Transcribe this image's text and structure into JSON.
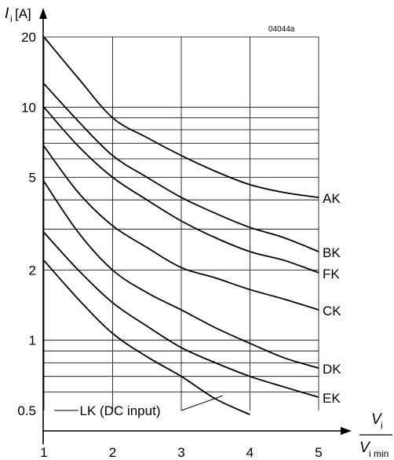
{
  "chart_data": {
    "type": "line",
    "figure_code": "04044a",
    "y_axis": {
      "label_main": "I",
      "label_sub": "i",
      "label_unit": "[A]",
      "scale": "log",
      "range": [
        0.5,
        20
      ],
      "tick_labels": [
        {
          "value": 20,
          "label": "20"
        },
        {
          "value": 10,
          "label": "10"
        },
        {
          "value": 5,
          "label": "5"
        },
        {
          "value": 2,
          "label": "2"
        },
        {
          "value": 1,
          "label": "1"
        },
        {
          "value": 0.5,
          "label": "0.5"
        }
      ],
      "gridlines": [
        0.6,
        0.7,
        0.8,
        0.9,
        1,
        2,
        3,
        4,
        5,
        6,
        7,
        8,
        9,
        10,
        20
      ]
    },
    "x_axis": {
      "label_numerator_main": "V",
      "label_numerator_sub": "i",
      "label_denominator_main": "V",
      "label_denominator_sub": "i min",
      "scale": "linear",
      "range": [
        1,
        5
      ],
      "tick_labels": [
        {
          "value": 1,
          "label": "1"
        },
        {
          "value": 2,
          "label": "2"
        },
        {
          "value": 3,
          "label": "3"
        },
        {
          "value": 4,
          "label": "4"
        },
        {
          "value": 5,
          "label": "5"
        }
      ],
      "gridlines": [
        1,
        2,
        3,
        4,
        5
      ]
    },
    "grid": true,
    "series": [
      {
        "name": "AK",
        "points": [
          [
            1,
            20
          ],
          [
            1.5,
            13.3
          ],
          [
            2,
            9.0
          ],
          [
            2.5,
            7.4
          ],
          [
            3,
            6.2
          ],
          [
            3.5,
            5.3
          ],
          [
            4,
            4.65
          ],
          [
            4.5,
            4.3
          ],
          [
            5,
            4.1
          ]
        ]
      },
      {
        "name": "BK",
        "points": [
          [
            1,
            12.6
          ],
          [
            1.5,
            8.7
          ],
          [
            2,
            6.2
          ],
          [
            2.5,
            5.0
          ],
          [
            3,
            4.1
          ],
          [
            3.5,
            3.5
          ],
          [
            4,
            3.05
          ],
          [
            4.5,
            2.75
          ],
          [
            5,
            2.4
          ]
        ]
      },
      {
        "name": "FK",
        "points": [
          [
            1,
            10.0
          ],
          [
            1.5,
            6.8
          ],
          [
            2,
            5.0
          ],
          [
            2.5,
            4.0
          ],
          [
            3,
            3.25
          ],
          [
            3.5,
            2.75
          ],
          [
            4,
            2.4
          ],
          [
            4.5,
            2.2
          ],
          [
            5,
            1.95
          ]
        ]
      },
      {
        "name": "CK",
        "points": [
          [
            1,
            6.8
          ],
          [
            1.5,
            4.3
          ],
          [
            2,
            3.1
          ],
          [
            2.5,
            2.5
          ],
          [
            3,
            2.05
          ],
          [
            3.5,
            1.85
          ],
          [
            4,
            1.65
          ],
          [
            4.5,
            1.5
          ],
          [
            5,
            1.35
          ]
        ]
      },
      {
        "name": "DK",
        "points": [
          [
            1,
            4.8
          ],
          [
            1.5,
            2.9
          ],
          [
            2,
            2.0
          ],
          [
            2.5,
            1.6
          ],
          [
            3,
            1.35
          ],
          [
            3.5,
            1.13
          ],
          [
            4,
            0.97
          ],
          [
            4.5,
            0.84
          ],
          [
            5,
            0.76
          ]
        ]
      },
      {
        "name": "EK",
        "points": [
          [
            1,
            2.9
          ],
          [
            1.5,
            2.0
          ],
          [
            2,
            1.45
          ],
          [
            2.5,
            1.15
          ],
          [
            3,
            0.93
          ],
          [
            3.5,
            0.8
          ],
          [
            4,
            0.7
          ],
          [
            4.5,
            0.63
          ],
          [
            5,
            0.57
          ]
        ]
      },
      {
        "name": "LK (DC input)",
        "points": [
          [
            1,
            2.2
          ],
          [
            1.5,
            1.5
          ],
          [
            2,
            1.07
          ],
          [
            2.5,
            0.85
          ],
          [
            3,
            0.7
          ],
          [
            3.5,
            0.56
          ],
          [
            4,
            0.48
          ]
        ]
      }
    ],
    "series_labels": [
      {
        "series": "AK",
        "text": "AK"
      },
      {
        "series": "BK",
        "text": "BK"
      },
      {
        "series": "FK",
        "text": "FK"
      },
      {
        "series": "CK",
        "text": "CK"
      },
      {
        "series": "DK",
        "text": "DK"
      },
      {
        "series": "EK",
        "text": "EK"
      },
      {
        "series": "LK (DC input)",
        "text": "LK (DC input)"
      }
    ]
  }
}
